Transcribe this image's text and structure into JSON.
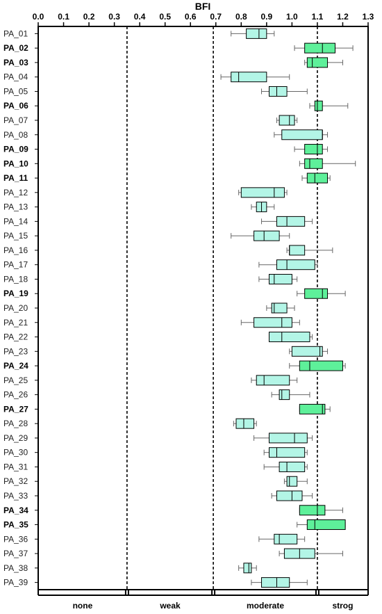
{
  "chart_data": {
    "type": "box",
    "title": "BFI",
    "xlim": [
      0.0,
      1.3
    ],
    "x_ticks": [
      "0.0",
      "0.1",
      "0.2",
      "0.3",
      "0.4",
      "0.5",
      "0.6",
      "0.7",
      "0.8",
      "0.9",
      "1.0",
      "1.1",
      "1.2",
      "1.3"
    ],
    "x_tick_values": [
      0.0,
      0.1,
      0.2,
      0.3,
      0.4,
      0.5,
      0.6,
      0.7,
      0.8,
      0.9,
      1.0,
      1.1,
      1.2,
      1.3
    ],
    "thresholds": [
      0.35,
      0.69,
      1.1
    ],
    "bands": [
      {
        "label": "none",
        "from": 0.0,
        "to": 0.35
      },
      {
        "label": "weak",
        "from": 0.35,
        "to": 0.69
      },
      {
        "label": "moderate",
        "from": 0.69,
        "to": 1.1
      },
      {
        "label": "strog",
        "from": 1.1,
        "to": 1.3
      }
    ],
    "colors": {
      "moderate": "#b3f5e6",
      "strong": "#5ef09a",
      "line": "#000000",
      "whisker": "#666666"
    },
    "categories": [
      {
        "label": "PA_01",
        "bold": false,
        "min": 0.76,
        "q1": 0.82,
        "median": 0.87,
        "q3": 0.9,
        "max": 0.93
      },
      {
        "label": "PA_02",
        "bold": true,
        "min": 1.01,
        "q1": 1.05,
        "median": 1.12,
        "q3": 1.17,
        "max": 1.24
      },
      {
        "label": "PA_03",
        "bold": true,
        "min": 1.05,
        "q1": 1.06,
        "median": 1.08,
        "q3": 1.14,
        "max": 1.2
      },
      {
        "label": "PA_04",
        "bold": false,
        "min": 0.72,
        "q1": 0.76,
        "median": 0.79,
        "q3": 0.9,
        "max": 0.99
      },
      {
        "label": "PA_05",
        "bold": false,
        "min": 0.88,
        "q1": 0.91,
        "median": 0.94,
        "q3": 0.98,
        "max": 1.06
      },
      {
        "label": "PA_06",
        "bold": true,
        "min": 1.07,
        "q1": 1.09,
        "median": 1.1,
        "q3": 1.12,
        "max": 1.22
      },
      {
        "label": "PA_07",
        "bold": false,
        "min": 0.94,
        "q1": 0.95,
        "median": 0.99,
        "q3": 1.01,
        "max": 1.02
      },
      {
        "label": "PA_08",
        "bold": false,
        "min": 0.93,
        "q1": 0.96,
        "median": 1.12,
        "q3": 1.12,
        "max": 1.14
      },
      {
        "label": "PA_09",
        "bold": true,
        "min": 1.01,
        "q1": 1.05,
        "median": 1.1,
        "q3": 1.12,
        "max": 1.14
      },
      {
        "label": "PA_10",
        "bold": true,
        "min": 1.03,
        "q1": 1.05,
        "median": 1.07,
        "q3": 1.12,
        "max": 1.25
      },
      {
        "label": "PA_11",
        "bold": true,
        "min": 1.04,
        "q1": 1.06,
        "median": 1.09,
        "q3": 1.14,
        "max": 1.15
      },
      {
        "label": "PA_12",
        "bold": false,
        "min": 0.79,
        "q1": 0.8,
        "median": 0.93,
        "q3": 0.97,
        "max": 0.98
      },
      {
        "label": "PA_13",
        "bold": false,
        "min": 0.84,
        "q1": 0.86,
        "median": 0.88,
        "q3": 0.9,
        "max": 0.93
      },
      {
        "label": "PA_14",
        "bold": false,
        "min": 0.88,
        "q1": 0.94,
        "median": 0.98,
        "q3": 1.05,
        "max": 1.08
      },
      {
        "label": "PA_15",
        "bold": false,
        "min": 0.76,
        "q1": 0.85,
        "median": 0.89,
        "q3": 0.95,
        "max": 0.99
      },
      {
        "label": "PA_16",
        "bold": false,
        "min": 0.98,
        "q1": 0.99,
        "median": 0.99,
        "q3": 1.05,
        "max": 1.16
      },
      {
        "label": "PA_17",
        "bold": false,
        "min": 0.87,
        "q1": 0.94,
        "median": 0.98,
        "q3": 1.09,
        "max": 1.1
      },
      {
        "label": "PA_18",
        "bold": false,
        "min": 0.87,
        "q1": 0.91,
        "median": 0.93,
        "q3": 1.0,
        "max": 1.02
      },
      {
        "label": "PA_19",
        "bold": true,
        "min": 1.02,
        "q1": 1.05,
        "median": 1.12,
        "q3": 1.14,
        "max": 1.21
      },
      {
        "label": "PA_20",
        "bold": false,
        "min": 0.9,
        "q1": 0.92,
        "median": 0.93,
        "q3": 0.98,
        "max": 1.01
      },
      {
        "label": "PA_21",
        "bold": false,
        "min": 0.8,
        "q1": 0.85,
        "median": 0.96,
        "q3": 1.0,
        "max": 1.03
      },
      {
        "label": "PA_22",
        "bold": false,
        "min": 0.91,
        "q1": 0.91,
        "median": 0.96,
        "q3": 1.07,
        "max": 1.08
      },
      {
        "label": "PA_23",
        "bold": false,
        "min": 0.99,
        "q1": 1.0,
        "median": 1.11,
        "q3": 1.12,
        "max": 1.14
      },
      {
        "label": "PA_24",
        "bold": true,
        "min": 0.99,
        "q1": 1.03,
        "median": 1.07,
        "q3": 1.2,
        "max": 1.21
      },
      {
        "label": "PA_25",
        "bold": false,
        "min": 0.84,
        "q1": 0.86,
        "median": 0.89,
        "q3": 0.99,
        "max": 1.02
      },
      {
        "label": "PA_26",
        "bold": false,
        "min": 0.92,
        "q1": 0.95,
        "median": 0.96,
        "q3": 0.99,
        "max": 1.07
      },
      {
        "label": "PA_27",
        "bold": true,
        "min": 1.03,
        "q1": 1.03,
        "median": 1.12,
        "q3": 1.13,
        "max": 1.15
      },
      {
        "label": "PA_28",
        "bold": false,
        "min": 0.77,
        "q1": 0.78,
        "median": 0.81,
        "q3": 0.85,
        "max": 0.86
      },
      {
        "label": "PA_29",
        "bold": false,
        "min": 0.85,
        "q1": 0.91,
        "median": 1.01,
        "q3": 1.06,
        "max": 1.08
      },
      {
        "label": "PA_30",
        "bold": false,
        "min": 0.89,
        "q1": 0.91,
        "median": 0.94,
        "q3": 1.05,
        "max": 1.06
      },
      {
        "label": "PA_31",
        "bold": false,
        "min": 0.89,
        "q1": 0.95,
        "median": 0.98,
        "q3": 1.05,
        "max": 1.06
      },
      {
        "label": "PA_32",
        "bold": false,
        "min": 0.97,
        "q1": 0.98,
        "median": 0.99,
        "q3": 1.02,
        "max": 1.06
      },
      {
        "label": "PA_33",
        "bold": false,
        "min": 0.92,
        "q1": 0.94,
        "median": 1.0,
        "q3": 1.04,
        "max": 1.08
      },
      {
        "label": "PA_34",
        "bold": true,
        "min": 1.03,
        "q1": 1.03,
        "median": 1.1,
        "q3": 1.13,
        "max": 1.2
      },
      {
        "label": "PA_35",
        "bold": true,
        "min": 1.02,
        "q1": 1.06,
        "median": 1.09,
        "q3": 1.21,
        "max": 1.21
      },
      {
        "label": "PA_36",
        "bold": false,
        "min": 0.87,
        "q1": 0.93,
        "median": 0.95,
        "q3": 1.02,
        "max": 1.05
      },
      {
        "label": "PA_37",
        "bold": false,
        "min": 0.95,
        "q1": 0.97,
        "median": 1.03,
        "q3": 1.09,
        "max": 1.2
      },
      {
        "label": "PA_38",
        "bold": false,
        "min": 0.79,
        "q1": 0.81,
        "median": 0.83,
        "q3": 0.84,
        "max": 0.86
      },
      {
        "label": "PA_39",
        "bold": false,
        "min": 0.84,
        "q1": 0.88,
        "median": 0.94,
        "q3": 0.99,
        "max": 1.06
      }
    ]
  }
}
